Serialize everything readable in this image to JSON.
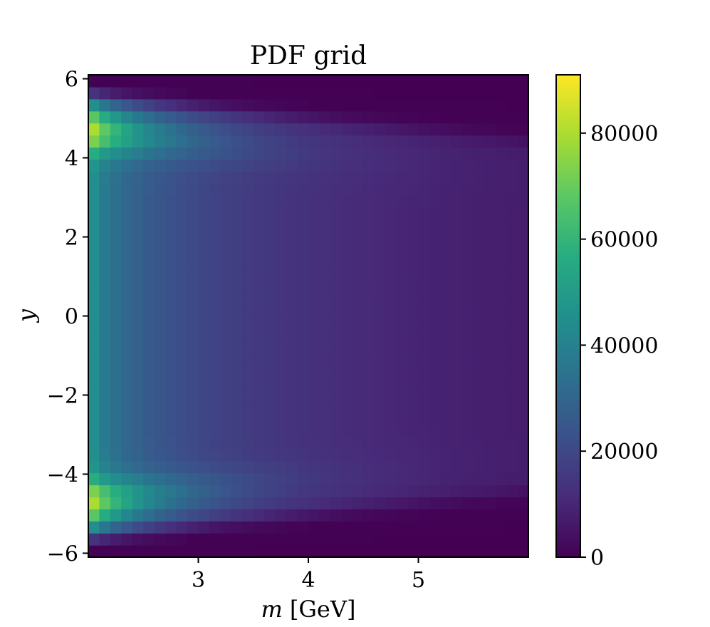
{
  "chart_data": {
    "type": "heatmap",
    "title": "PDF grid",
    "xlabel_var": "m",
    "xlabel_unit": "[GeV]",
    "ylabel": "y",
    "xlim": [
      2.0,
      6.0
    ],
    "ylim": [
      -6.1,
      6.1
    ],
    "x_ticks": [
      3,
      4,
      5
    ],
    "x_tick_labels": [
      "3",
      "4",
      "5"
    ],
    "y_ticks": [
      6,
      4,
      2,
      0,
      -2,
      -4,
      -6
    ],
    "y_tick_labels": [
      "6",
      "4",
      "2",
      "0",
      "−2",
      "−4",
      "−6"
    ],
    "colormap": "viridis",
    "colorbar": {
      "range": [
        0,
        91000
      ],
      "ticks": [
        0,
        20000,
        40000,
        60000,
        80000
      ],
      "tick_labels": [
        "0",
        "20000",
        "40000",
        "60000",
        "80000"
      ]
    },
    "grid_shape": {
      "x_cells": 40,
      "y_cells": 40
    },
    "value_model": {
      "peak_value": 90000,
      "peak_location": [
        2.05,
        4.6
      ],
      "center_value_at_m_min": 52000,
      "value_at_m_max_y0": 12000,
      "support_edge_y_at_m_min": 5.5,
      "support_edge_y_at_m_max": 4.4
    },
    "grid": false
  }
}
